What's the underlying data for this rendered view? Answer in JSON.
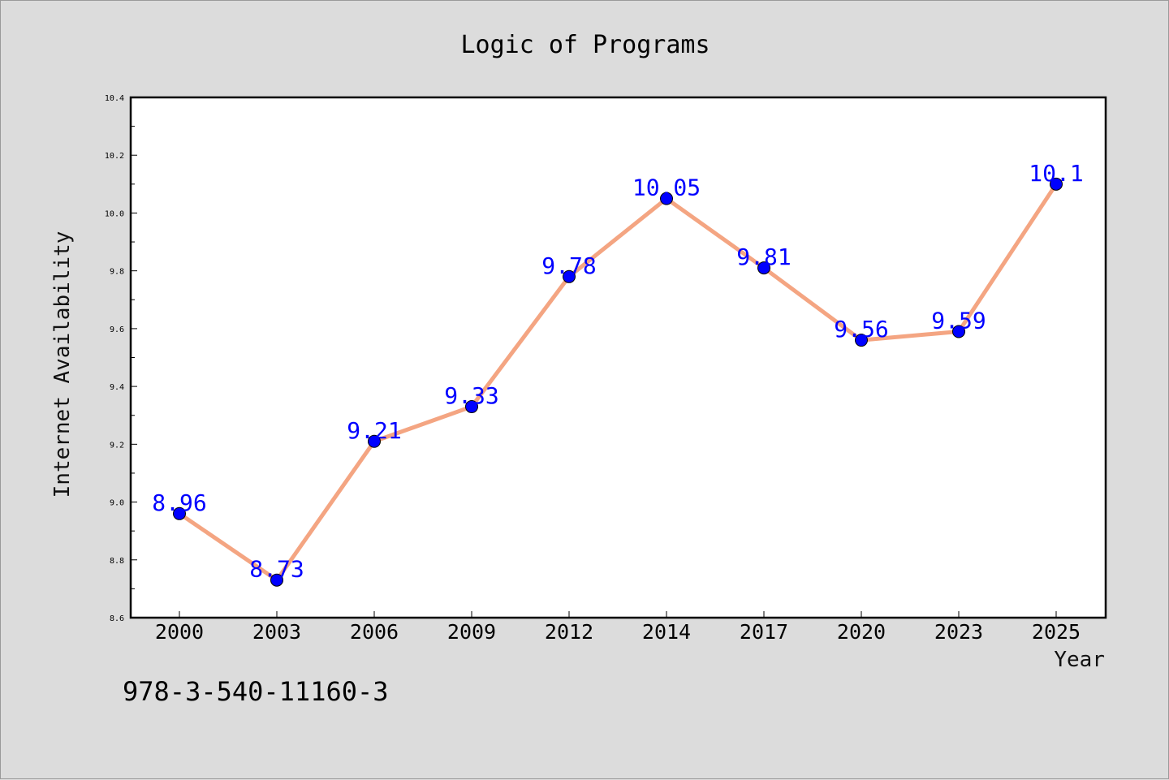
{
  "chart_data": {
    "type": "line",
    "title": "Logic of Programs",
    "xlabel": "Year",
    "ylabel": "Internet Availability",
    "categories": [
      "2000",
      "2003",
      "2006",
      "2009",
      "2012",
      "2014",
      "2017",
      "2020",
      "2023",
      "2025"
    ],
    "series": [
      {
        "values": [
          8.96,
          8.73,
          9.21,
          9.33,
          9.78,
          10.05,
          9.81,
          9.56,
          9.59,
          10.1
        ],
        "labels": [
          "8.96",
          "8.73",
          "9.21",
          "9.33",
          "9.78",
          "10.05",
          "9.81",
          "9.56",
          "9.59",
          "10.1"
        ],
        "line_color": "#f4a582",
        "marker_color": "#0000ff"
      }
    ],
    "ylim": [
      8.6,
      10.4
    ],
    "yticks": [
      "8.6",
      "8.8",
      "9.0",
      "9.2",
      "9.4",
      "9.6",
      "9.8",
      "10.0",
      "10.2",
      "10.4"
    ],
    "grid": false,
    "legend": "none"
  },
  "footnote": "978-3-540-11160-3",
  "colors": {
    "background": "#dcdcdc",
    "plot_background": "#ffffff",
    "data_label": "#0000ff"
  }
}
